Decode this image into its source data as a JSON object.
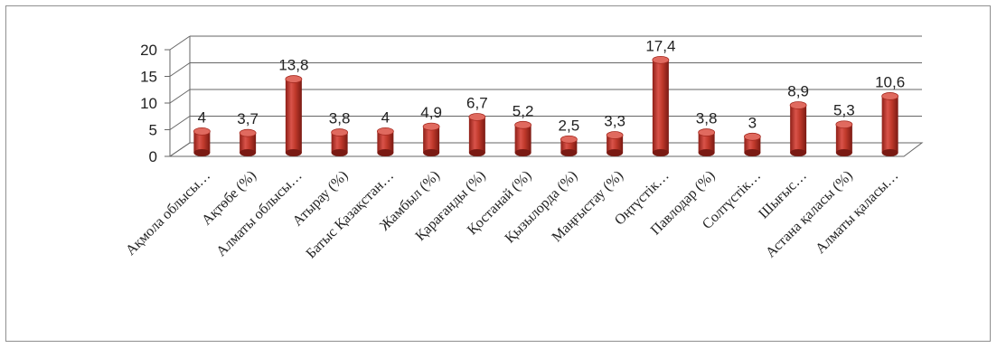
{
  "chart_data": {
    "type": "bar",
    "title": "",
    "xlabel": "",
    "ylabel": "",
    "ylim": [
      0,
      20
    ],
    "yticks": [
      "0",
      "5",
      "10",
      "15",
      "20"
    ],
    "grid": true,
    "legend": "none",
    "bar_color": "#c0392b",
    "categories": [
      "Ақмола облысы…",
      "Ақтөбе (%)",
      "Алматы облысы…",
      "Атырау  (%)",
      "Батыс Қазақстан…",
      "Жамбыл  (%)",
      "Қарағанды  (%)",
      "Қостанай  (%)",
      "Қызылорда  (%)",
      "Маңғыстау  (%)",
      "Оңтүстік…",
      "Павлодар  (%)",
      "Солтүстік…",
      "Шығыс…",
      "Астана қаласы  (%)",
      "Алматы қаласы…"
    ],
    "values": [
      4,
      3.7,
      13.8,
      3.8,
      4,
      4.9,
      6.7,
      5.2,
      2.5,
      3.3,
      17.4,
      3.8,
      3,
      8.9,
      5.3,
      10.6
    ],
    "value_labels": [
      "4",
      "3,7",
      "13,8",
      "3,8",
      "4",
      "4,9",
      "6,7",
      "5,2",
      "2,5",
      "3,3",
      "17,4",
      "3,8",
      "3",
      "8,9",
      "5,3",
      "10,6"
    ]
  }
}
